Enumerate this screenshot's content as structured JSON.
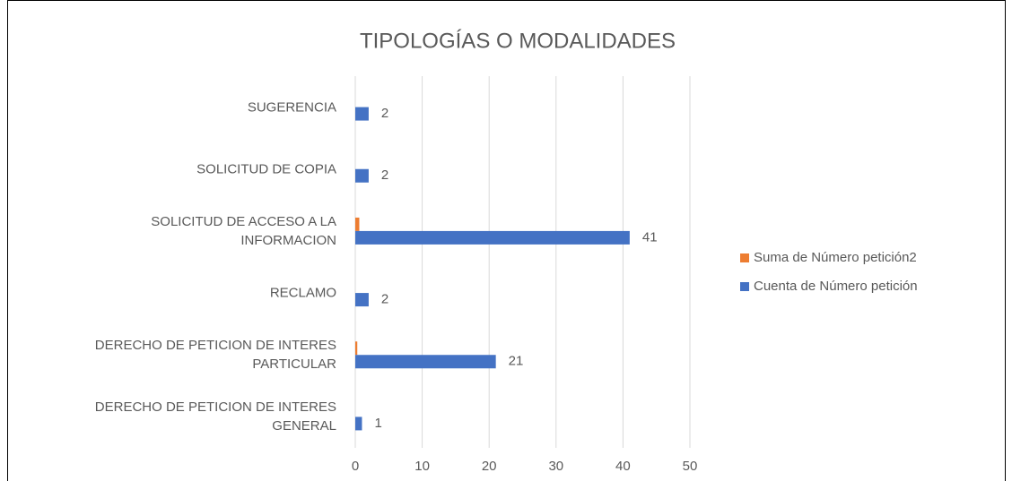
{
  "chart_data": {
    "type": "bar",
    "orientation": "horizontal",
    "title": "TIPOLOGÍAS O MODALIDADES",
    "categories": [
      "DERECHO DE PETICION DE INTERES\nGENERAL",
      "DERECHO DE PETICION DE INTERES\nPARTICULAR",
      "RECLAMO",
      "SOLICITUD DE ACCESO A LA\nINFORMACION",
      "SOLICITUD DE COPIA",
      "SUGERENCIA"
    ],
    "series": [
      {
        "name": "Suma de Número petición2",
        "color": "#ed7d31",
        "values": [
          0,
          0.3,
          0,
          0.6,
          0,
          0
        ]
      },
      {
        "name": "Cuenta de Número petición",
        "color": "#4472c4",
        "values": [
          1,
          21,
          2,
          41,
          2,
          2
        ],
        "data_labels": true
      }
    ],
    "xlim": [
      0,
      50
    ],
    "xticks": [
      0,
      10,
      20,
      30,
      40,
      50
    ],
    "grid": true,
    "legend": "right"
  }
}
